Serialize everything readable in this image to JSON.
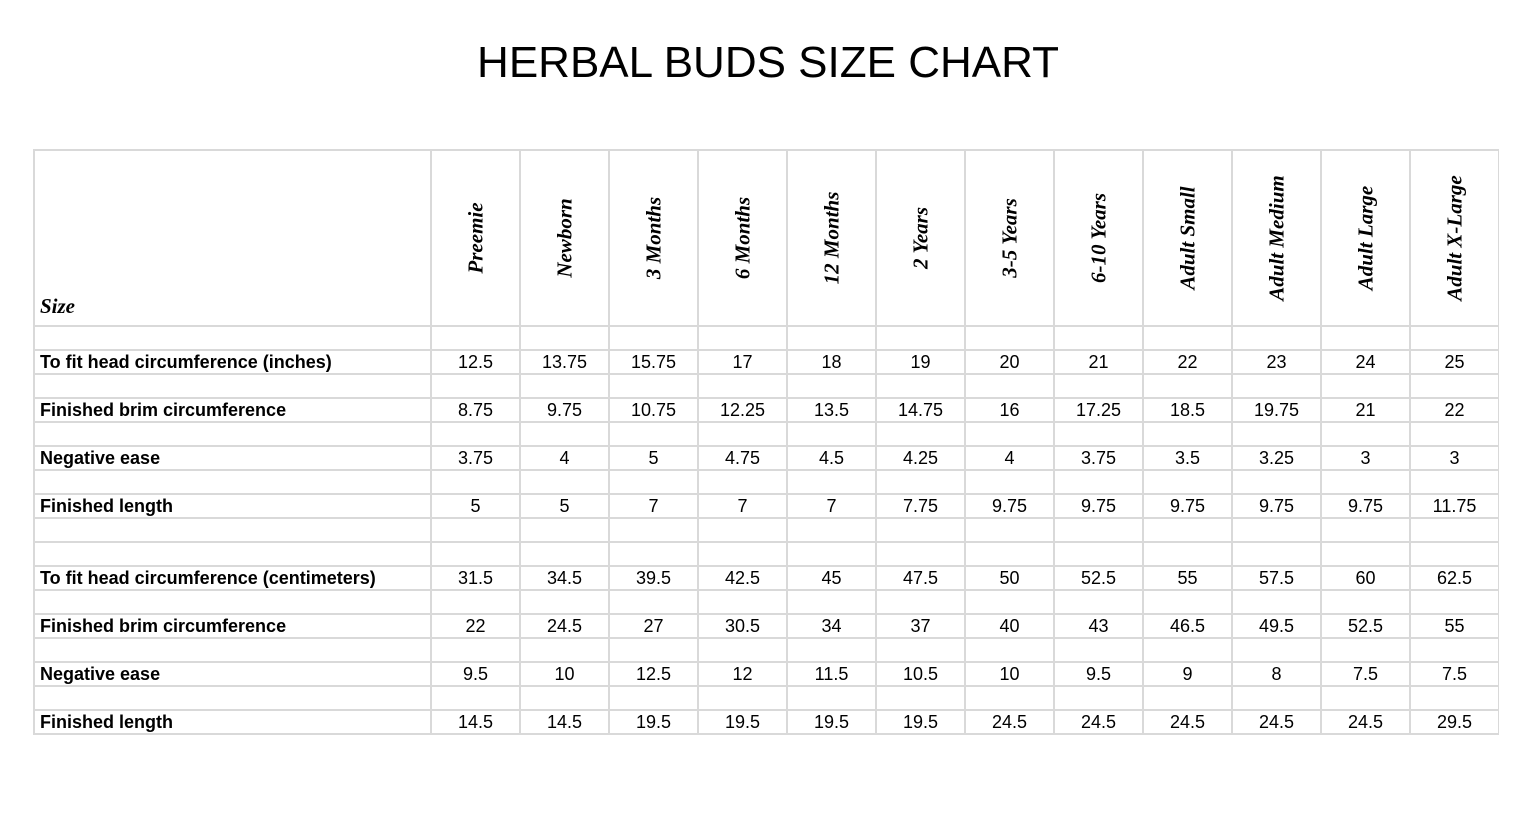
{
  "title": "HERBAL BUDS SIZE CHART",
  "size_label": "Size",
  "sizes": [
    "Preemie",
    "Newborn",
    "3 Months",
    "6 Months",
    "12 Months",
    "2 Years",
    "3-5 Years",
    "6-10 Years",
    "Adult Small",
    "Adult Medium",
    "Adult Large",
    "Adult X-Large"
  ],
  "rows": [
    {
      "label": "To fit head circumference (inches)",
      "values": [
        "12.5",
        "13.75",
        "15.75",
        "17",
        "18",
        "19",
        "20",
        "21",
        "22",
        "23",
        "24",
        "25"
      ]
    },
    {
      "label": "Finished brim circumference",
      "values": [
        "8.75",
        "9.75",
        "10.75",
        "12.25",
        "13.5",
        "14.75",
        "16",
        "17.25",
        "18.5",
        "19.75",
        "21",
        "22"
      ]
    },
    {
      "label": "Negative ease",
      "values": [
        "3.75",
        "4",
        "5",
        "4.75",
        "4.5",
        "4.25",
        "4",
        "3.75",
        "3.5",
        "3.25",
        "3",
        "3"
      ]
    },
    {
      "label": "Finished length",
      "values": [
        "5",
        "5",
        "7",
        "7",
        "7",
        "7.75",
        "9.75",
        "9.75",
        "9.75",
        "9.75",
        "9.75",
        "11.75"
      ]
    },
    {
      "label": "To fit head circumference (centimeters)",
      "values": [
        "31.5",
        "34.5",
        "39.5",
        "42.5",
        "45",
        "47.5",
        "50",
        "52.5",
        "55",
        "57.5",
        "60",
        "62.5"
      ]
    },
    {
      "label": "Finished brim circumference",
      "values": [
        "22",
        "24.5",
        "27",
        "30.5",
        "34",
        "37",
        "40",
        "43",
        "46.5",
        "49.5",
        "52.5",
        "55"
      ]
    },
    {
      "label": "Negative ease",
      "values": [
        "9.5",
        "10",
        "12.5",
        "12",
        "11.5",
        "10.5",
        "10",
        "9.5",
        "9",
        "8",
        "7.5",
        "7.5"
      ]
    },
    {
      "label": "Finished length",
      "values": [
        "14.5",
        "14.5",
        "19.5",
        "19.5",
        "19.5",
        "19.5",
        "24.5",
        "24.5",
        "24.5",
        "24.5",
        "24.5",
        "29.5"
      ]
    }
  ],
  "colors": {
    "grid": "#d9d9d9",
    "text": "#000000",
    "background": "#ffffff"
  }
}
